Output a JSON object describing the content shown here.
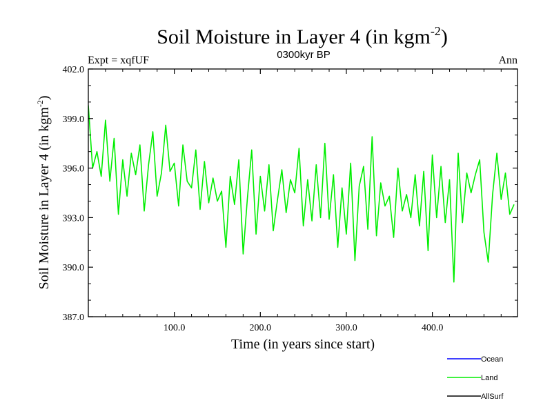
{
  "chart_data": {
    "type": "line",
    "title": "Soil Moisture in Layer 4 (in kgm",
    "title_sup": "-2",
    "title_end": ")",
    "subtitle": "0300kyr BP",
    "left_label": "Expt = xqfUF",
    "right_label": "Ann",
    "xlabel": "Time (in years since start)",
    "ylabel": "Soil Moisture in Layer 4 (in kgm",
    "ylabel_sup": "-2",
    "ylabel_end": ")",
    "xlim": [
      0,
      499
    ],
    "ylim": [
      387.0,
      402.0
    ],
    "x_ticks": [
      100,
      200,
      300,
      400
    ],
    "x_tick_labels": [
      "100.0",
      "200.0",
      "300.0",
      "400.0"
    ],
    "y_ticks": [
      387,
      390,
      393,
      396,
      399,
      402
    ],
    "y_tick_labels": [
      "387.0",
      "390.0",
      "393.0",
      "396.0",
      "399.0",
      "402.0"
    ],
    "legend": [
      {
        "name": "Ocean",
        "color": "#0000ff"
      },
      {
        "name": "Land",
        "color": "#00ee00"
      },
      {
        "name": "AllSurf",
        "color": "#000000"
      }
    ],
    "series": [
      {
        "name": "Land",
        "color": "#00ee00",
        "x_start": 0,
        "x_step": 5,
        "values": [
          399.8,
          396.0,
          397.0,
          395.5,
          398.9,
          395.2,
          397.8,
          393.2,
          396.5,
          394.3,
          396.9,
          395.6,
          397.4,
          393.4,
          396.2,
          398.2,
          394.3,
          395.7,
          398.6,
          395.8,
          396.3,
          393.7,
          397.4,
          395.2,
          394.8,
          397.1,
          393.5,
          396.4,
          393.9,
          395.4,
          394.0,
          394.6,
          391.2,
          395.5,
          393.8,
          396.5,
          390.8,
          394.2,
          397.1,
          392.0,
          395.5,
          393.4,
          396.2,
          392.2,
          394.1,
          395.9,
          393.3,
          395.3,
          394.5,
          397.2,
          392.5,
          395.3,
          392.8,
          396.2,
          393.0,
          397.5,
          392.9,
          395.6,
          391.2,
          394.8,
          392.0,
          396.3,
          390.4,
          394.9,
          396.1,
          392.3,
          397.9,
          391.9,
          395.1,
          393.7,
          394.3,
          391.8,
          396.0,
          393.4,
          394.4,
          393.0,
          395.6,
          392.5,
          395.8,
          391.0,
          396.8,
          393.0,
          396.1,
          392.7,
          395.3,
          389.1,
          396.9,
          392.7,
          395.7,
          394.5,
          395.6,
          396.5,
          392.1,
          390.3,
          394.4,
          396.9,
          394.1,
          395.7,
          393.2,
          393.8
        ]
      }
    ]
  }
}
